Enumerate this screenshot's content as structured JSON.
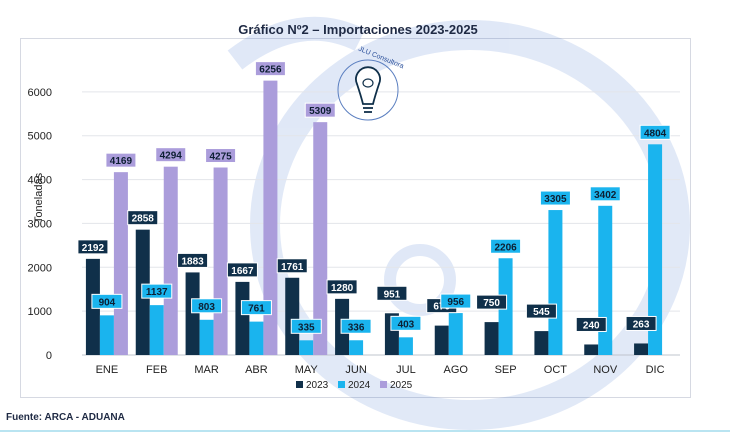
{
  "chart_data": {
    "type": "bar",
    "title": "Gráfico Nº2 – Importaciones 2023-2025",
    "ylabel": "Toneladas",
    "xlabel": "",
    "ylim": [
      0,
      7000
    ],
    "yticks": [
      0,
      1000,
      2000,
      3000,
      4000,
      5000,
      6000
    ],
    "grid": true,
    "legend_position": "bottom",
    "categories": [
      "ENE",
      "FEB",
      "MAR",
      "ABR",
      "MAY",
      "JUN",
      "JUL",
      "AGO",
      "SEP",
      "OCT",
      "NOV",
      "DIC"
    ],
    "series": [
      {
        "name": "2023",
        "color": "#10304a",
        "values": [
          2192,
          2858,
          1883,
          1667,
          1761,
          1280,
          951,
          670,
          750,
          545,
          240,
          263
        ]
      },
      {
        "name": "2024",
        "color": "#1ab4ee",
        "values": [
          904,
          1137,
          803,
          761,
          335,
          336,
          403,
          956,
          2206,
          3305,
          3402,
          4804
        ]
      },
      {
        "name": "2025",
        "color": "#ab9ddb",
        "values": [
          4169,
          4294,
          4275,
          6256,
          5309,
          null,
          null,
          null,
          null,
          null,
          null,
          null
        ]
      }
    ]
  },
  "logo": {
    "text": "JLU Consultora",
    "icon": "lightbulb-pig-icon"
  },
  "source": "Fuente: ARCA - ADUANA"
}
